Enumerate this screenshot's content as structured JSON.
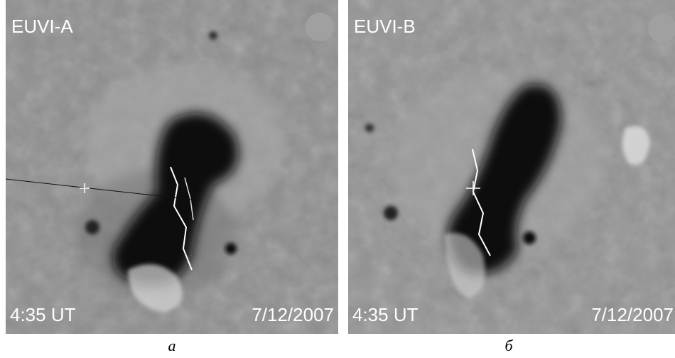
{
  "panels": [
    {
      "instrument": "EUVI-A",
      "time": "4:35 UT",
      "date": "7/12/2007",
      "caption": "а"
    },
    {
      "instrument": "EUVI-B",
      "time": "4:35 UT",
      "date": "7/12/2007",
      "caption": "б"
    }
  ]
}
